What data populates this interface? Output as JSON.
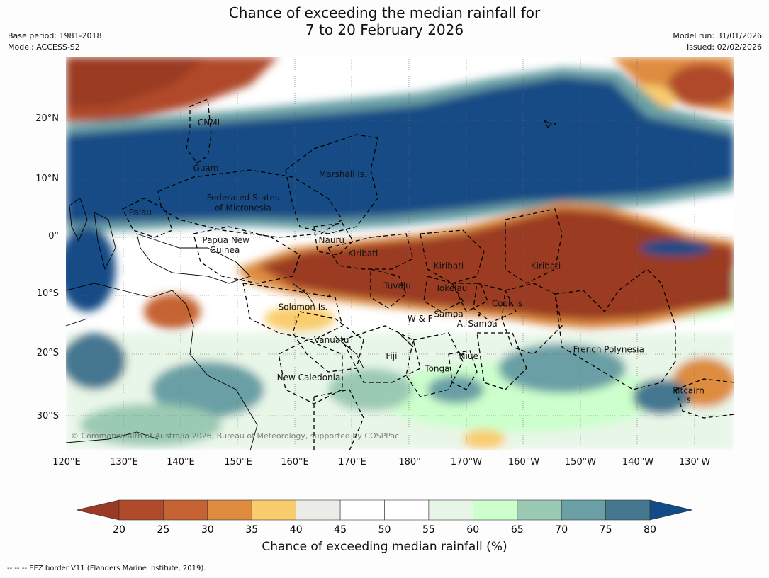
{
  "title": {
    "line1": "Chance of exceeding the median rainfall for",
    "line2": "7 to 20 February 2026"
  },
  "meta": {
    "base_period": "Base period: 1981-2018",
    "model": "Model: ACCESS-S2",
    "model_run": "Model run: 31/01/2026",
    "issued": "Issued: 02/02/2026"
  },
  "axes": {
    "lat_labels": [
      "20°N",
      "10°N",
      "0°",
      "10°S",
      "20°S",
      "30°S"
    ],
    "lon_labels": [
      "120°E",
      "130°E",
      "140°E",
      "150°E",
      "160°E",
      "170°E",
      "180°",
      "170°W",
      "160°W",
      "150°W",
      "140°W",
      "130°W"
    ]
  },
  "places": [
    {
      "name": "CNMI",
      "lon": 145.0,
      "lat": 19.8
    },
    {
      "name": "Guam",
      "lon": 144.5,
      "lat": 12.0
    },
    {
      "name": "Marshall Is.",
      "lon": 168.5,
      "lat": 11.0
    },
    {
      "name": "Federated States",
      "lon": 151.0,
      "lat": 7.0
    },
    {
      "name": "of Micronesia",
      "lon": 151.0,
      "lat": 5.3
    },
    {
      "name": "Palau",
      "lon": 133.0,
      "lat": 4.5
    },
    {
      "name": "Papua New",
      "lon": 148.0,
      "lat": -0.2
    },
    {
      "name": "Guinea",
      "lon": 147.8,
      "lat": -1.9
    },
    {
      "name": "Nauru",
      "lon": 166.5,
      "lat": -0.2
    },
    {
      "name": "Kiribati",
      "lon": 172.0,
      "lat": -2.5
    },
    {
      "name": "Kiribati",
      "lon": 187.0,
      "lat": -4.6
    },
    {
      "name": "Kiribati",
      "lon": 204.0,
      "lat": -4.6
    },
    {
      "name": "Tuvalu",
      "lon": 178.0,
      "lat": -8.0
    },
    {
      "name": "Tokelau",
      "lon": 187.5,
      "lat": -8.4
    },
    {
      "name": "Cook Is.",
      "lon": 197.5,
      "lat": -11.0
    },
    {
      "name": "Solomon Is.",
      "lon": 161.5,
      "lat": -11.6
    },
    {
      "name": "W & F",
      "lon": 182.0,
      "lat": -13.6
    },
    {
      "name": "Samoa",
      "lon": 187.0,
      "lat": -12.8
    },
    {
      "name": "A. Samoa",
      "lon": 192.0,
      "lat": -14.4
    },
    {
      "name": "Vanuatu",
      "lon": 166.5,
      "lat": -17.2
    },
    {
      "name": "French Polynesia",
      "lon": 215.0,
      "lat": -18.8
    },
    {
      "name": "Fiji",
      "lon": 177.0,
      "lat": -20.0
    },
    {
      "name": "Niue",
      "lon": 190.5,
      "lat": -20.0
    },
    {
      "name": "Tonga",
      "lon": 185.0,
      "lat": -22.1
    },
    {
      "name": "New Caledonia",
      "lon": 162.5,
      "lat": -23.6
    },
    {
      "name": "Pitcairn",
      "lon": 229.0,
      "lat": -25.8
    },
    {
      "name": "Is.",
      "lon": 229.0,
      "lat": -27.4
    }
  ],
  "copyright": "© Commonwealth of Australia 2026, Bureau of Meteorology, supported by COSPPac",
  "colorbar": {
    "ticks": [
      "20",
      "25",
      "30",
      "35",
      "40",
      "45",
      "50",
      "55",
      "60",
      "65",
      "70",
      "75",
      "80"
    ],
    "colors": [
      "#9a3a24",
      "#b04a2a",
      "#c66332",
      "#de8c40",
      "#f9cd6e",
      "#ebebe8",
      "#ffffff",
      "#ffffff",
      "#e8f6e8",
      "#ccffcc",
      "#9bcab4",
      "#6aa0a5",
      "#457790",
      "#124b85"
    ],
    "title": "Chance of exceeding median rainfall (%)"
  },
  "footer": "--  --  -- EEZ border V11 (Flanders Marine Institute, 2019)."
}
